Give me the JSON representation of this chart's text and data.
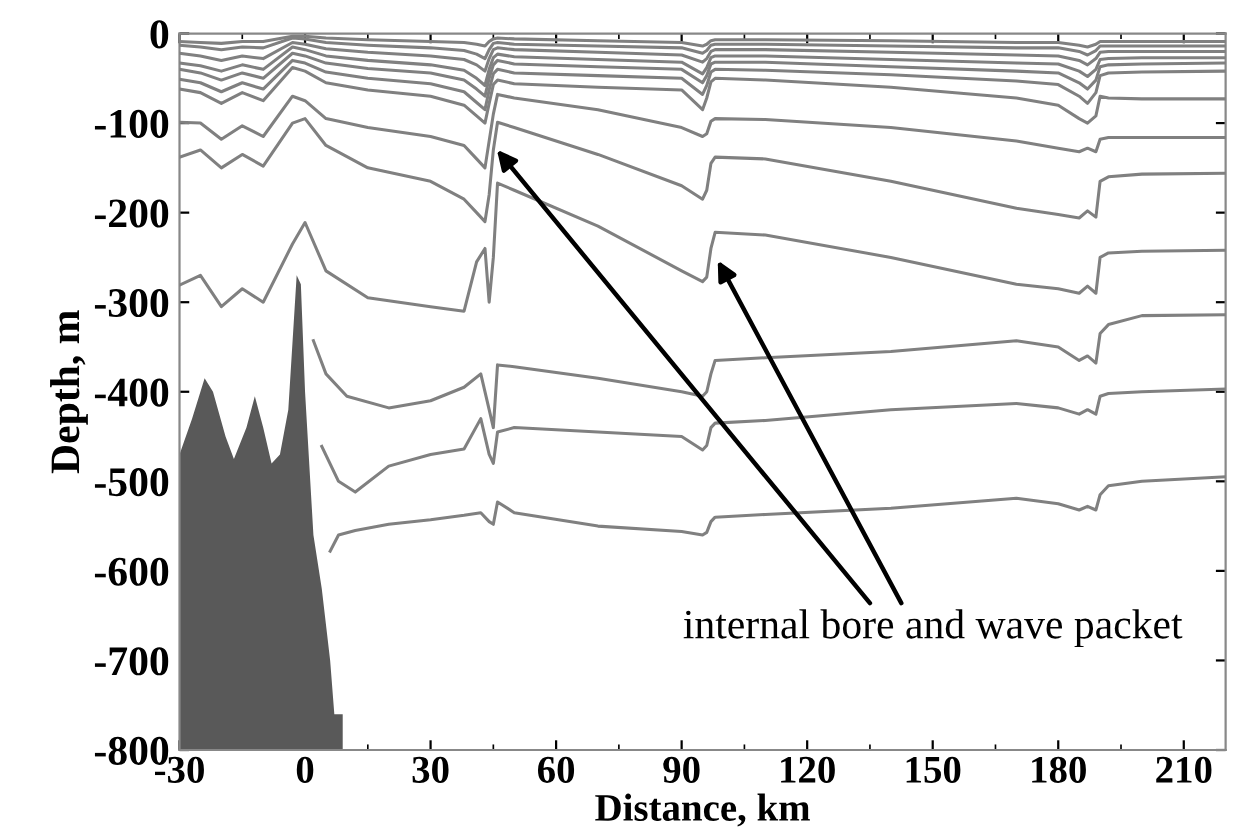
{
  "chart_data": {
    "type": "line",
    "xlabel": "Distance, km",
    "ylabel": "Depth, m",
    "xlim": [
      -30,
      220
    ],
    "ylim": [
      -800,
      0
    ],
    "xticks": [
      -30,
      0,
      30,
      60,
      90,
      120,
      150,
      180,
      210
    ],
    "yticks": [
      -800,
      -700,
      -600,
      -500,
      -400,
      -300,
      -200,
      -100,
      0
    ],
    "grid": false,
    "marker": "none",
    "line_style": "solid",
    "annotations": [
      {
        "text": "internal bore and wave packet",
        "x": 45,
        "y": -125
      }
    ],
    "series": [
      {
        "type": "area",
        "color": "#595959",
        "x": [
          -30,
          -30,
          -27,
          -24,
          -22,
          -19,
          -17,
          -14,
          -12,
          -10,
          -8,
          -6,
          -4,
          -2,
          -1,
          0,
          2,
          4,
          6,
          7,
          9,
          9
        ],
        "values": [
          -800,
          -470,
          -430,
          -385,
          -400,
          -450,
          -475,
          -440,
          -405,
          -440,
          -480,
          -470,
          -420,
          -270,
          -280,
          -400,
          -560,
          -620,
          -700,
          -760,
          -760,
          -800
        ]
      },
      {
        "color": "#808080",
        "x": [
          -30,
          -25,
          -20,
          -15,
          -10,
          -3,
          0,
          5,
          15,
          30,
          38,
          41,
          43,
          44,
          45,
          46,
          50,
          70,
          90,
          95,
          96,
          97,
          98,
          110,
          140,
          170,
          180,
          185,
          187,
          189,
          190,
          192,
          200,
          220
        ],
        "values": [
          -9,
          -10,
          -11,
          -9,
          -9,
          -3,
          -3,
          -5,
          -7,
          -9,
          -10,
          -12,
          -14,
          -9,
          -6,
          -5,
          -6,
          -8,
          -10,
          -14,
          -12,
          -8,
          -7,
          -7,
          -8,
          -10,
          -10,
          -13,
          -15,
          -12,
          -9,
          -9,
          -9,
          -9
        ]
      },
      {
        "color": "#808080",
        "x": [
          -30,
          -25,
          -20,
          -15,
          -10,
          -3,
          0,
          5,
          15,
          30,
          38,
          41,
          43,
          44,
          45,
          46,
          50,
          70,
          90,
          95,
          96,
          97,
          98,
          110,
          140,
          170,
          180,
          185,
          187,
          189,
          190,
          192,
          200,
          220
        ],
        "values": [
          -13,
          -15,
          -18,
          -15,
          -16,
          -5,
          -6,
          -10,
          -13,
          -16,
          -19,
          -23,
          -28,
          -18,
          -11,
          -10,
          -12,
          -14,
          -16,
          -22,
          -19,
          -13,
          -12,
          -12,
          -14,
          -16,
          -16,
          -20,
          -24,
          -19,
          -14,
          -14,
          -14,
          -14
        ]
      },
      {
        "color": "#808080",
        "x": [
          -30,
          -25,
          -20,
          -15,
          -10,
          -3,
          0,
          5,
          15,
          30,
          38,
          41,
          43,
          44,
          45,
          46,
          50,
          70,
          90,
          95,
          96,
          97,
          98,
          110,
          140,
          170,
          180,
          185,
          187,
          189,
          190,
          192,
          200,
          220
        ],
        "values": [
          -22,
          -25,
          -30,
          -25,
          -28,
          -10,
          -12,
          -17,
          -21,
          -25,
          -29,
          -35,
          -42,
          -28,
          -18,
          -16,
          -18,
          -21,
          -24,
          -32,
          -28,
          -20,
          -18,
          -18,
          -21,
          -24,
          -25,
          -30,
          -35,
          -28,
          -21,
          -20,
          -20,
          -20
        ]
      },
      {
        "color": "#808080",
        "x": [
          -30,
          -25,
          -20,
          -15,
          -10,
          -3,
          0,
          5,
          15,
          30,
          38,
          41,
          43,
          44,
          45,
          46,
          50,
          70,
          90,
          95,
          96,
          97,
          98,
          110,
          140,
          170,
          180,
          185,
          187,
          189,
          190,
          192,
          200,
          220
        ],
        "values": [
          -33,
          -36,
          -42,
          -35,
          -40,
          -15,
          -18,
          -25,
          -30,
          -35,
          -41,
          -50,
          -58,
          -40,
          -27,
          -23,
          -26,
          -29,
          -32,
          -45,
          -38,
          -27,
          -25,
          -25,
          -29,
          -33,
          -34,
          -42,
          -48,
          -40,
          -29,
          -28,
          -27,
          -27
        ]
      },
      {
        "color": "#808080",
        "x": [
          -30,
          -25,
          -20,
          -15,
          -10,
          -3,
          0,
          5,
          15,
          30,
          38,
          41,
          43,
          44,
          45,
          46,
          50,
          70,
          90,
          95,
          96,
          97,
          98,
          110,
          140,
          170,
          180,
          185,
          187,
          189,
          190,
          192,
          200,
          220
        ],
        "values": [
          -40,
          -44,
          -52,
          -44,
          -50,
          -22,
          -25,
          -33,
          -39,
          -44,
          -52,
          -62,
          -70,
          -50,
          -35,
          -30,
          -34,
          -37,
          -40,
          -55,
          -47,
          -34,
          -32,
          -32,
          -37,
          -42,
          -44,
          -55,
          -62,
          -52,
          -37,
          -35,
          -34,
          -33
        ]
      },
      {
        "color": "#808080",
        "x": [
          -30,
          -25,
          -20,
          -15,
          -10,
          -3,
          0,
          5,
          15,
          30,
          38,
          41,
          43,
          44,
          45,
          46,
          50,
          70,
          90,
          95,
          96,
          97,
          98,
          110,
          140,
          170,
          180,
          185,
          187,
          189,
          190,
          192,
          200,
          220
        ],
        "values": [
          -51,
          -55,
          -65,
          -55,
          -62,
          -30,
          -33,
          -43,
          -50,
          -56,
          -65,
          -77,
          -85,
          -63,
          -45,
          -40,
          -44,
          -47,
          -50,
          -68,
          -58,
          -43,
          -40,
          -41,
          -46,
          -53,
          -57,
          -70,
          -78,
          -66,
          -47,
          -44,
          -43,
          -42
        ]
      },
      {
        "color": "#808080",
        "x": [
          -30,
          -25,
          -20,
          -15,
          -10,
          -3,
          0,
          5,
          15,
          30,
          38,
          41,
          43,
          44,
          45,
          46,
          50,
          70,
          90,
          95,
          96,
          97,
          98,
          110,
          140,
          170,
          180,
          185,
          187,
          189,
          190,
          192,
          200,
          220
        ],
        "values": [
          -62,
          -66,
          -78,
          -66,
          -75,
          -38,
          -42,
          -55,
          -63,
          -70,
          -80,
          -92,
          -100,
          -78,
          -57,
          -52,
          -56,
          -60,
          -63,
          -85,
          -72,
          -54,
          -50,
          -52,
          -60,
          -72,
          -80,
          -95,
          -100,
          -92,
          -70,
          -72,
          -73,
          -73
        ]
      },
      {
        "color": "#808080",
        "x": [
          -30,
          -25,
          -20,
          -15,
          -10,
          -3,
          0,
          5,
          15,
          30,
          38,
          41,
          43,
          44,
          45,
          46,
          50,
          70,
          90,
          95,
          96,
          97,
          98,
          110,
          140,
          170,
          180,
          185,
          187,
          189,
          190,
          192,
          200,
          220
        ],
        "values": [
          -99,
          -100,
          -118,
          -103,
          -115,
          -70,
          -75,
          -95,
          -105,
          -115,
          -125,
          -140,
          -150,
          -120,
          -90,
          -68,
          -72,
          -85,
          -105,
          -115,
          -112,
          -98,
          -95,
          -96,
          -105,
          -120,
          -128,
          -132,
          -128,
          -132,
          -118,
          -116,
          -116,
          -116
        ]
      },
      {
        "color": "#808080",
        "x": [
          -30,
          -25,
          -20,
          -15,
          -10,
          -3,
          0,
          5,
          15,
          30,
          38,
          41,
          43,
          44,
          45,
          46,
          50,
          70,
          90,
          95,
          96,
          97,
          98,
          110,
          140,
          170,
          180,
          185,
          187,
          189,
          190,
          192,
          200,
          220
        ],
        "values": [
          -138,
          -130,
          -150,
          -135,
          -148,
          -100,
          -95,
          -125,
          -150,
          -165,
          -185,
          -200,
          -210,
          -180,
          -130,
          -99,
          -105,
          -135,
          -170,
          -185,
          -175,
          -145,
          -138,
          -140,
          -165,
          -195,
          -202,
          -206,
          -198,
          -205,
          -165,
          -160,
          -157,
          -156
        ]
      },
      {
        "color": "#808080",
        "x": [
          -30,
          -25,
          -20,
          -15,
          -10,
          -3,
          0,
          5,
          15,
          30,
          38,
          41,
          43,
          44,
          45,
          46,
          50,
          70,
          90,
          95,
          96,
          97,
          98,
          110,
          140,
          170,
          180,
          185,
          187,
          189,
          190,
          192,
          200,
          220
        ],
        "values": [
          -281,
          -270,
          -305,
          -285,
          -300,
          -235,
          -211,
          -265,
          -295,
          -305,
          -310,
          -255,
          -240,
          -300,
          -250,
          -167,
          -175,
          -215,
          -265,
          -277,
          -272,
          -240,
          -222,
          -225,
          -250,
          -280,
          -285,
          -290,
          -282,
          -290,
          -250,
          -245,
          -243,
          -242
        ]
      },
      {
        "color": "#808080",
        "x": [
          2,
          5,
          10,
          20,
          30,
          38,
          42,
          44,
          45,
          46,
          50,
          70,
          90,
          95,
          96,
          97,
          98,
          110,
          140,
          170,
          180,
          185,
          187,
          189,
          190,
          192,
          200,
          220
        ],
        "values": [
          -343,
          -380,
          -405,
          -418,
          -410,
          -395,
          -380,
          -420,
          -440,
          -370,
          -372,
          -385,
          -400,
          -405,
          -400,
          -380,
          -365,
          -362,
          -355,
          -343,
          -350,
          -365,
          -360,
          -368,
          -335,
          -325,
          -315,
          -314
        ]
      },
      {
        "color": "#808080",
        "x": [
          4,
          8,
          12,
          20,
          30,
          38,
          42,
          44,
          45,
          46,
          50,
          70,
          90,
          95,
          96,
          97,
          98,
          110,
          140,
          170,
          180,
          185,
          187,
          189,
          190,
          192,
          200,
          220
        ],
        "values": [
          -461,
          -500,
          -512,
          -483,
          -470,
          -464,
          -430,
          -470,
          -480,
          -445,
          -440,
          -445,
          -450,
          -465,
          -460,
          -440,
          -435,
          -432,
          -420,
          -413,
          -418,
          -425,
          -420,
          -425,
          -405,
          -402,
          -400,
          -397
        ]
      },
      {
        "color": "#808080",
        "x": [
          6,
          8,
          12,
          20,
          30,
          38,
          42,
          44,
          45,
          46,
          50,
          70,
          90,
          95,
          96,
          97,
          98,
          110,
          140,
          170,
          180,
          185,
          187,
          189,
          190,
          192,
          200,
          220
        ],
        "values": [
          -578,
          -560,
          -555,
          -548,
          -543,
          -538,
          -535,
          -545,
          -548,
          -523,
          -535,
          -550,
          -556,
          -560,
          -557,
          -545,
          -540,
          -537,
          -530,
          -519,
          -525,
          -532,
          -528,
          -532,
          -515,
          -505,
          -500,
          -495
        ]
      }
    ]
  }
}
